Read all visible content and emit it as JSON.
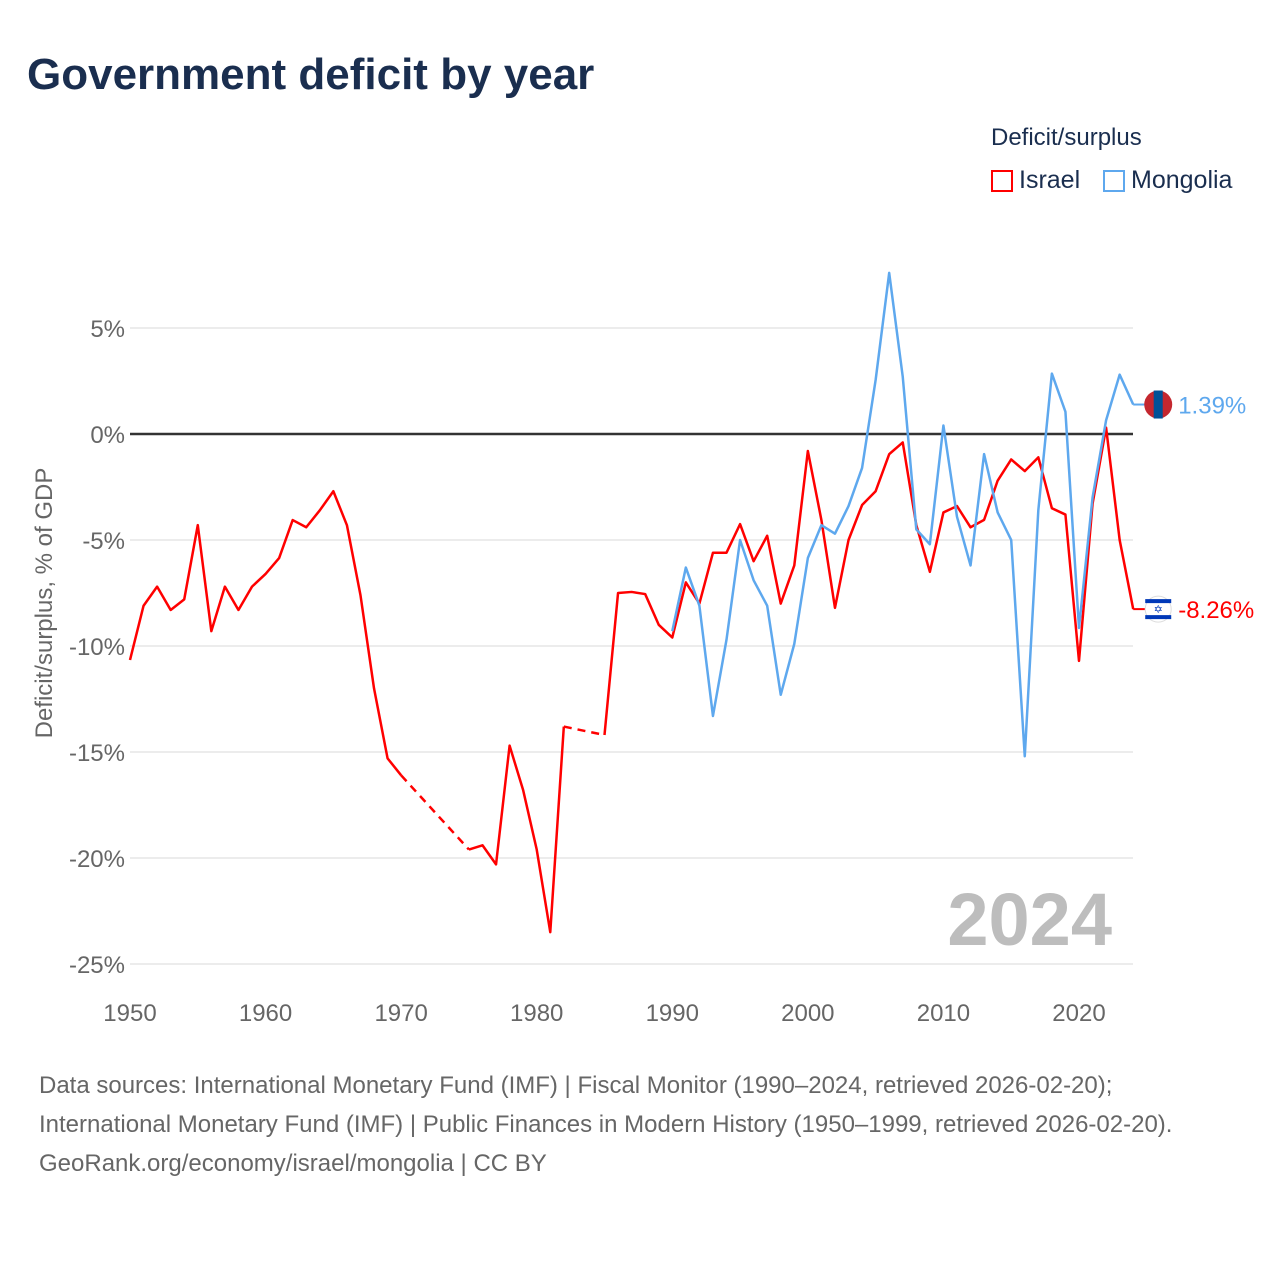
{
  "title": "Government deficit by year",
  "legend": {
    "title": "Deficit/surplus",
    "items": [
      {
        "label": "Israel",
        "color": "#ff0000"
      },
      {
        "label": "Mongolia",
        "color": "#5ea8ee"
      }
    ]
  },
  "year_badge": "2024",
  "footer": {
    "line1": "Data sources: International Monetary Fund (IMF) | Fiscal Monitor (1990–2024, retrieved 2026-02-20); International Monetary Fund (IMF) | Public Finances in Modern History (1950–1999, retrieved 2026-02-20).",
    "line2": "GeoRank.org/economy/israel/mongolia | CC BY"
  },
  "chart_data": {
    "type": "line",
    "title": "Government deficit by year",
    "xlabel": "",
    "ylabel": "Deficit/surplus, % of GDP",
    "xlim": [
      1950,
      2024
    ],
    "ylim": [
      -26,
      9
    ],
    "xticks": [
      1950,
      1960,
      1970,
      1980,
      1990,
      2000,
      2010,
      2020
    ],
    "yticks": [
      5,
      0,
      -5,
      -10,
      -15,
      -20,
      -25
    ],
    "ytick_labels": [
      "5%",
      "0%",
      "-5%",
      "-10%",
      "-15%",
      "-20%",
      "-25%"
    ],
    "series": [
      {
        "name": "Israel",
        "color": "#ff0000",
        "end_label": "-8.26%",
        "start": 1950,
        "values": [
          -10.66,
          -8.1,
          -7.2,
          -8.3,
          -7.8,
          -4.3,
          -9.3,
          -7.2,
          -8.3,
          -7.2,
          -6.6,
          -5.85,
          -4.06,
          -4.4,
          -3.6,
          -2.7,
          -4.3,
          -7.6,
          -12.0,
          -15.3,
          -16.1,
          null,
          null,
          null,
          null,
          -19.6,
          -19.4,
          -20.3,
          -14.7,
          -16.8,
          -19.6,
          -23.5,
          -13.8,
          null,
          null,
          -14.2,
          -7.5,
          -7.45,
          -7.55,
          -9.0,
          -9.6,
          -7.0,
          -8.0,
          -5.6,
          -5.6,
          -4.25,
          -6.0,
          -4.8,
          -8.0,
          -6.2,
          -0.8,
          -4.06,
          -8.2,
          -5.0,
          -3.35,
          -2.7,
          -0.95,
          -0.4,
          -4.3,
          -6.5,
          -3.7,
          -3.4,
          -4.4,
          -4.05,
          -2.2,
          -1.2,
          -1.75,
          -1.1,
          -3.5,
          -3.8,
          -10.7,
          -3.3,
          0.3,
          -5.0,
          -8.26
        ]
      },
      {
        "name": "Mongolia",
        "color": "#5ea8ee",
        "end_label": "1.39%",
        "start": 1990,
        "values": [
          -9.3,
          -6.3,
          -8.1,
          -13.3,
          -9.7,
          -5.0,
          -6.9,
          -8.1,
          -12.3,
          -9.9,
          -5.85,
          -4.3,
          -4.7,
          -3.4,
          -1.6,
          2.55,
          7.6,
          2.7,
          -4.5,
          -5.2,
          0.4,
          -3.9,
          -6.2,
          -0.95,
          -3.7,
          -5.0,
          -15.2,
          -3.6,
          2.85,
          1.05,
          -9.15,
          -3.0,
          0.65,
          2.8,
          1.39
        ]
      }
    ]
  }
}
